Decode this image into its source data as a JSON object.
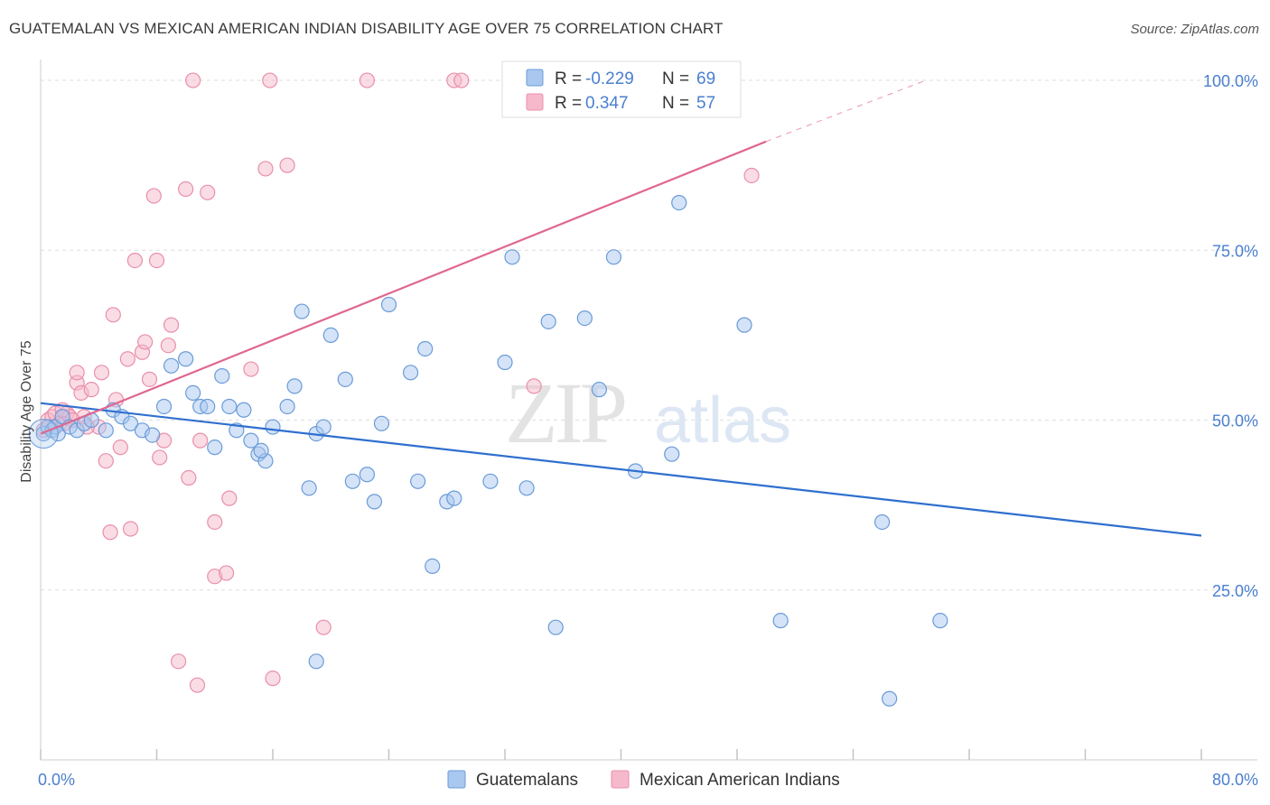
{
  "title": "GUATEMALAN VS MEXICAN AMERICAN INDIAN DISABILITY AGE OVER 75 CORRELATION CHART",
  "source": "Source: ZipAtlas.com",
  "watermark": {
    "zip": "ZIP",
    "atlas": "atlas"
  },
  "colors": {
    "blue_fill": "#a9c8ef",
    "blue_stroke": "#6a9bd8",
    "blue_line": "#2f6fcf",
    "pink_fill": "#f6b9cb",
    "pink_stroke": "#e98fab",
    "pink_line": "#e0678f",
    "axis_text": "#4a7fd0",
    "grid": "#dddddd"
  },
  "legend": {
    "rows": [
      {
        "r_label": "R =",
        "r_value": "-0.229",
        "n_label": "N =",
        "n_value": "69",
        "series": "blue"
      },
      {
        "r_label": "R =",
        "r_value": "0.347",
        "n_label": "N =",
        "n_value": "57",
        "series": "pink"
      }
    ]
  },
  "bottom_legend": [
    {
      "label": "Guatemalans",
      "series": "blue"
    },
    {
      "label": "Mexican American Indians",
      "series": "pink"
    }
  ],
  "chart_data": {
    "type": "scatter",
    "title": "GUATEMALAN VS MEXICAN AMERICAN INDIAN DISABILITY AGE OVER 75 CORRELATION CHART",
    "xlabel": "",
    "ylabel": "Disability Age Over 75",
    "xlim": [
      0,
      80
    ],
    "ylim": [
      0,
      102
    ],
    "x_tick_labels": [
      "0.0%",
      "80.0%"
    ],
    "y_ticks": [
      25,
      50,
      75,
      100
    ],
    "y_tick_labels": [
      "25.0%",
      "50.0%",
      "75.0%",
      "100.0%"
    ],
    "grid": true,
    "series": [
      {
        "name": "Guatemalans",
        "color": "blue",
        "trend": {
          "x": [
            0,
            80
          ],
          "y": [
            52.5,
            33.0
          ],
          "dashed_to": null
        },
        "points": [
          [
            0.2,
            48.0
          ],
          [
            0.5,
            49.0
          ],
          [
            0.8,
            48.5
          ],
          [
            1.0,
            49.0
          ],
          [
            1.2,
            48.0
          ],
          [
            1.5,
            50.5
          ],
          [
            2.0,
            49.0
          ],
          [
            2.5,
            48.5
          ],
          [
            3.0,
            49.5
          ],
          [
            3.5,
            50.0
          ],
          [
            4.5,
            48.5
          ],
          [
            5.0,
            51.5
          ],
          [
            5.6,
            50.5
          ],
          [
            6.2,
            49.5
          ],
          [
            7.0,
            48.5
          ],
          [
            7.7,
            47.8
          ],
          [
            8.5,
            52.0
          ],
          [
            9.0,
            58.0
          ],
          [
            10.0,
            59.0
          ],
          [
            10.5,
            54.0
          ],
          [
            11.0,
            52.0
          ],
          [
            11.5,
            52.0
          ],
          [
            12.0,
            46.0
          ],
          [
            12.5,
            56.5
          ],
          [
            13.0,
            52.0
          ],
          [
            13.5,
            48.5
          ],
          [
            14.0,
            51.5
          ],
          [
            14.5,
            47.0
          ],
          [
            15.0,
            45.0
          ],
          [
            15.5,
            44.0
          ],
          [
            15.2,
            45.5
          ],
          [
            16.0,
            49.0
          ],
          [
            17.0,
            52.0
          ],
          [
            17.5,
            55.0
          ],
          [
            18.0,
            66.0
          ],
          [
            18.5,
            40.0
          ],
          [
            19.0,
            48.0
          ],
          [
            19.5,
            49.0
          ],
          [
            20.0,
            62.5
          ],
          [
            21.0,
            56.0
          ],
          [
            21.5,
            41.0
          ],
          [
            22.5,
            42.0
          ],
          [
            23.0,
            38.0
          ],
          [
            23.5,
            49.5
          ],
          [
            24.0,
            67.0
          ],
          [
            25.5,
            57.0
          ],
          [
            26.0,
            41.0
          ],
          [
            26.5,
            60.5
          ],
          [
            27.0,
            28.5
          ],
          [
            28.0,
            38.0
          ],
          [
            28.5,
            38.5
          ],
          [
            31.0,
            41.0
          ],
          [
            32.0,
            58.5
          ],
          [
            32.5,
            74.0
          ],
          [
            33.5,
            40.0
          ],
          [
            35.0,
            64.5
          ],
          [
            35.5,
            19.5
          ],
          [
            37.5,
            65.0
          ],
          [
            38.5,
            54.5
          ],
          [
            39.5,
            74.0
          ],
          [
            41.0,
            42.5
          ],
          [
            44.0,
            82.0
          ],
          [
            43.5,
            45.0
          ],
          [
            48.5,
            64.0
          ],
          [
            51.0,
            20.5
          ],
          [
            58.0,
            35.0
          ],
          [
            58.5,
            9.0
          ],
          [
            62.0,
            20.5
          ],
          [
            19.0,
            14.5
          ]
        ]
      },
      {
        "name": "Mexican American Indians",
        "color": "pink",
        "trend": {
          "x": [
            0,
            50
          ],
          "y": [
            48.0,
            91.0
          ],
          "dashed_to": [
            61,
            100
          ]
        },
        "points": [
          [
            0.2,
            48.5
          ],
          [
            0.5,
            50.0
          ],
          [
            0.8,
            50.5
          ],
          [
            1.0,
            51.0
          ],
          [
            1.3,
            49.5
          ],
          [
            1.6,
            49.5
          ],
          [
            1.8,
            51.0
          ],
          [
            2.0,
            50.5
          ],
          [
            2.5,
            55.5
          ],
          [
            2.5,
            57.0
          ],
          [
            2.8,
            54.0
          ],
          [
            3.0,
            50.5
          ],
          [
            3.5,
            54.5
          ],
          [
            4.0,
            49.0
          ],
          [
            4.2,
            57.0
          ],
          [
            4.5,
            44.0
          ],
          [
            4.8,
            33.5
          ],
          [
            5.0,
            65.5
          ],
          [
            5.2,
            53.0
          ],
          [
            5.5,
            46.0
          ],
          [
            6.0,
            59.0
          ],
          [
            6.2,
            34.0
          ],
          [
            6.5,
            73.5
          ],
          [
            7.0,
            60.0
          ],
          [
            7.2,
            61.5
          ],
          [
            7.5,
            56.0
          ],
          [
            7.8,
            83.0
          ],
          [
            8.0,
            73.5
          ],
          [
            8.2,
            44.5
          ],
          [
            8.5,
            47.0
          ],
          [
            8.8,
            61.0
          ],
          [
            9.0,
            64.0
          ],
          [
            9.5,
            14.5
          ],
          [
            10.0,
            84.0
          ],
          [
            10.2,
            41.5
          ],
          [
            10.5,
            100.0
          ],
          [
            10.8,
            11.0
          ],
          [
            11.0,
            47.0
          ],
          [
            11.5,
            83.5
          ],
          [
            12.0,
            35.0
          ],
          [
            12.0,
            27.0
          ],
          [
            12.8,
            27.5
          ],
          [
            13.0,
            38.5
          ],
          [
            14.5,
            57.5
          ],
          [
            15.5,
            87.0
          ],
          [
            15.8,
            100.0
          ],
          [
            16.0,
            12.0
          ],
          [
            17.0,
            87.5
          ],
          [
            19.5,
            19.5
          ],
          [
            22.5,
            100.0
          ],
          [
            28.5,
            100.0
          ],
          [
            29.0,
            100.0
          ],
          [
            34.0,
            55.0
          ],
          [
            49.0,
            86.0
          ],
          [
            1.5,
            51.5
          ],
          [
            2.2,
            50.0
          ],
          [
            3.2,
            49.0
          ]
        ]
      }
    ]
  }
}
